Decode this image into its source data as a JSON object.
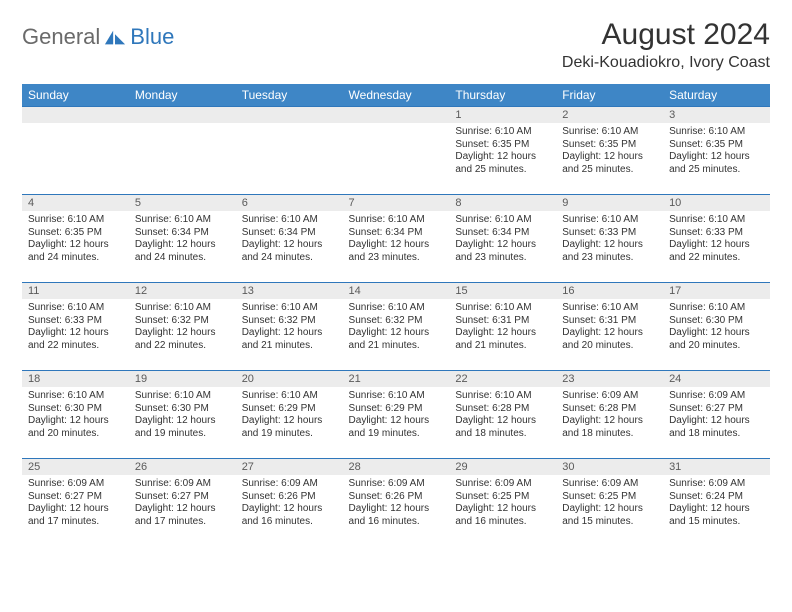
{
  "brand": {
    "word1": "General",
    "word2": "Blue"
  },
  "header": {
    "month_title": "August 2024",
    "location": "Deki-Kouadiokro, Ivory Coast"
  },
  "colors": {
    "header_bg": "#3e86c6",
    "header_text": "#ffffff",
    "week_border": "#2f77bb",
    "daynum_bg": "#ececec",
    "body_text": "#333333",
    "logo_gray": "#6a6a6a",
    "logo_blue": "#2f77bb"
  },
  "daynames": [
    "Sunday",
    "Monday",
    "Tuesday",
    "Wednesday",
    "Thursday",
    "Friday",
    "Saturday"
  ],
  "weeks": [
    [
      {
        "blank": true
      },
      {
        "blank": true
      },
      {
        "blank": true
      },
      {
        "blank": true
      },
      {
        "n": "1",
        "sunrise": "6:10 AM",
        "sunset": "6:35 PM",
        "daylight": "12 hours and 25 minutes."
      },
      {
        "n": "2",
        "sunrise": "6:10 AM",
        "sunset": "6:35 PM",
        "daylight": "12 hours and 25 minutes."
      },
      {
        "n": "3",
        "sunrise": "6:10 AM",
        "sunset": "6:35 PM",
        "daylight": "12 hours and 25 minutes."
      }
    ],
    [
      {
        "n": "4",
        "sunrise": "6:10 AM",
        "sunset": "6:35 PM",
        "daylight": "12 hours and 24 minutes."
      },
      {
        "n": "5",
        "sunrise": "6:10 AM",
        "sunset": "6:34 PM",
        "daylight": "12 hours and 24 minutes."
      },
      {
        "n": "6",
        "sunrise": "6:10 AM",
        "sunset": "6:34 PM",
        "daylight": "12 hours and 24 minutes."
      },
      {
        "n": "7",
        "sunrise": "6:10 AM",
        "sunset": "6:34 PM",
        "daylight": "12 hours and 23 minutes."
      },
      {
        "n": "8",
        "sunrise": "6:10 AM",
        "sunset": "6:34 PM",
        "daylight": "12 hours and 23 minutes."
      },
      {
        "n": "9",
        "sunrise": "6:10 AM",
        "sunset": "6:33 PM",
        "daylight": "12 hours and 23 minutes."
      },
      {
        "n": "10",
        "sunrise": "6:10 AM",
        "sunset": "6:33 PM",
        "daylight": "12 hours and 22 minutes."
      }
    ],
    [
      {
        "n": "11",
        "sunrise": "6:10 AM",
        "sunset": "6:33 PM",
        "daylight": "12 hours and 22 minutes."
      },
      {
        "n": "12",
        "sunrise": "6:10 AM",
        "sunset": "6:32 PM",
        "daylight": "12 hours and 22 minutes."
      },
      {
        "n": "13",
        "sunrise": "6:10 AM",
        "sunset": "6:32 PM",
        "daylight": "12 hours and 21 minutes."
      },
      {
        "n": "14",
        "sunrise": "6:10 AM",
        "sunset": "6:32 PM",
        "daylight": "12 hours and 21 minutes."
      },
      {
        "n": "15",
        "sunrise": "6:10 AM",
        "sunset": "6:31 PM",
        "daylight": "12 hours and 21 minutes."
      },
      {
        "n": "16",
        "sunrise": "6:10 AM",
        "sunset": "6:31 PM",
        "daylight": "12 hours and 20 minutes."
      },
      {
        "n": "17",
        "sunrise": "6:10 AM",
        "sunset": "6:30 PM",
        "daylight": "12 hours and 20 minutes."
      }
    ],
    [
      {
        "n": "18",
        "sunrise": "6:10 AM",
        "sunset": "6:30 PM",
        "daylight": "12 hours and 20 minutes."
      },
      {
        "n": "19",
        "sunrise": "6:10 AM",
        "sunset": "6:30 PM",
        "daylight": "12 hours and 19 minutes."
      },
      {
        "n": "20",
        "sunrise": "6:10 AM",
        "sunset": "6:29 PM",
        "daylight": "12 hours and 19 minutes."
      },
      {
        "n": "21",
        "sunrise": "6:10 AM",
        "sunset": "6:29 PM",
        "daylight": "12 hours and 19 minutes."
      },
      {
        "n": "22",
        "sunrise": "6:10 AM",
        "sunset": "6:28 PM",
        "daylight": "12 hours and 18 minutes."
      },
      {
        "n": "23",
        "sunrise": "6:09 AM",
        "sunset": "6:28 PM",
        "daylight": "12 hours and 18 minutes."
      },
      {
        "n": "24",
        "sunrise": "6:09 AM",
        "sunset": "6:27 PM",
        "daylight": "12 hours and 18 minutes."
      }
    ],
    [
      {
        "n": "25",
        "sunrise": "6:09 AM",
        "sunset": "6:27 PM",
        "daylight": "12 hours and 17 minutes."
      },
      {
        "n": "26",
        "sunrise": "6:09 AM",
        "sunset": "6:27 PM",
        "daylight": "12 hours and 17 minutes."
      },
      {
        "n": "27",
        "sunrise": "6:09 AM",
        "sunset": "6:26 PM",
        "daylight": "12 hours and 16 minutes."
      },
      {
        "n": "28",
        "sunrise": "6:09 AM",
        "sunset": "6:26 PM",
        "daylight": "12 hours and 16 minutes."
      },
      {
        "n": "29",
        "sunrise": "6:09 AM",
        "sunset": "6:25 PM",
        "daylight": "12 hours and 16 minutes."
      },
      {
        "n": "30",
        "sunrise": "6:09 AM",
        "sunset": "6:25 PM",
        "daylight": "12 hours and 15 minutes."
      },
      {
        "n": "31",
        "sunrise": "6:09 AM",
        "sunset": "6:24 PM",
        "daylight": "12 hours and 15 minutes."
      }
    ]
  ],
  "labels": {
    "sunrise": "Sunrise:",
    "sunset": "Sunset:",
    "daylight": "Daylight:"
  }
}
